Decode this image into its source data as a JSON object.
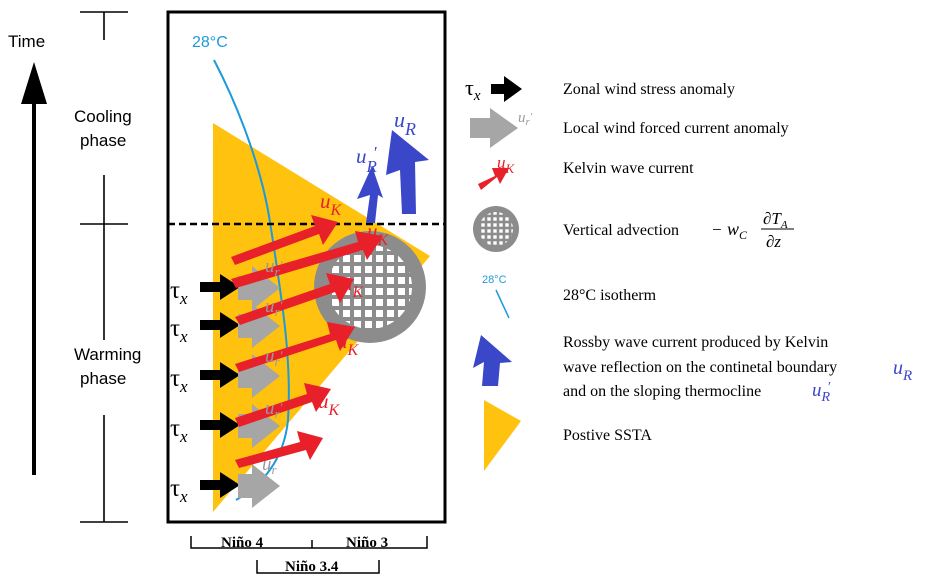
{
  "axis": {
    "time": "Time",
    "cooling": [
      "Cooling",
      "phase"
    ],
    "warming": [
      "Warming",
      "phase"
    ]
  },
  "isotherm_label": "28°C",
  "region_labels": {
    "nino4": "Niño 4",
    "nino3": "Niño 3",
    "nino34": "Niño 3.4"
  },
  "symbols": {
    "tau": "τ",
    "tau_sub": "x",
    "u": "u",
    "sub_r": "r",
    "sub_K": "K",
    "sub_R": "R",
    "prime": "′"
  },
  "legend": {
    "wind_stress": "Zonal wind stress anomaly",
    "local_current": "Local wind forced current anomaly",
    "kelvin": "Kelvin wave current",
    "vertical_advection": "Vertical advection",
    "formula": {
      "minus": "−",
      "w": "w",
      "w_sub": "C",
      "d": "∂",
      "T": "T",
      "T_sub": "A",
      "z": "z"
    },
    "isotherm_icon_label": "28°C",
    "isotherm": "28°C isotherm",
    "rossby_lines": [
      "Rossby wave current produced by Kelvin",
      "wave reflection on the continetal boundary",
      "and on the sloping thermocline"
    ],
    "positive_ssta": "Postive SSTA"
  },
  "colors": {
    "ssta": "#FFC20E",
    "kelvin": "#E8202A",
    "rossby": "#3B47C9",
    "local": "#A6A6A6",
    "isotherm": "#1E9ADB",
    "advection": "#8C8C8C"
  }
}
